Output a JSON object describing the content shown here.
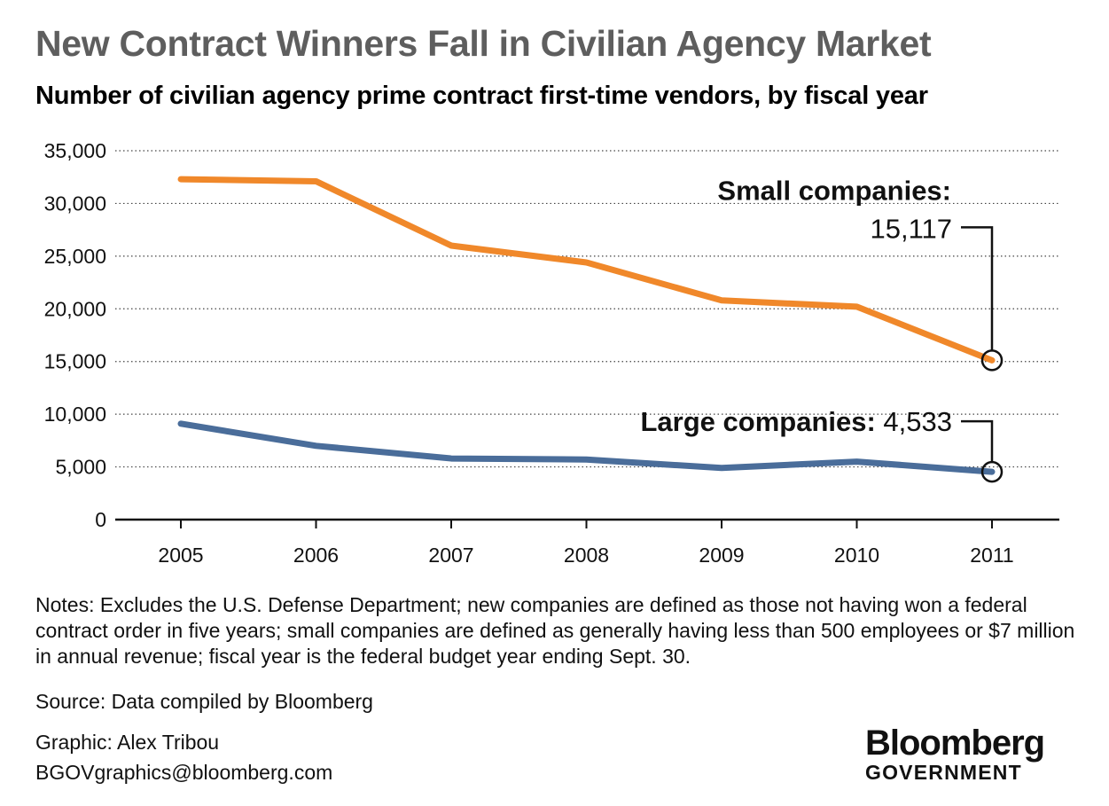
{
  "title": "New Contract Winners Fall in Civilian Agency Market",
  "subtitle": "Number of civilian agency prime contract first-time vendors, by fiscal year",
  "notes": "Notes: Excludes the U.S. Defense Department; new companies are defined as those not having won a federal contract order in five years; small companies are defined as generally having less than 500 employees or $7 million in annual revenue; fiscal year is the federal budget year ending Sept. 30.",
  "source": "Source: Data compiled by Bloomberg",
  "credit": {
    "graphic": "Graphic: Alex Tribou",
    "email": "BGOVgraphics@bloomberg.com"
  },
  "logo": {
    "brand": "Bloomberg",
    "sub": "GOVERNMENT"
  },
  "chart_data": {
    "type": "line",
    "x": [
      "2005",
      "2006",
      "2007",
      "2008",
      "2009",
      "2010",
      "2011"
    ],
    "ylim": [
      0,
      35000
    ],
    "yticks": [
      0,
      5000,
      10000,
      15000,
      20000,
      25000,
      30000,
      35000
    ],
    "ytick_labels": [
      "0",
      "5,000",
      "10,000",
      "15,000",
      "20,000",
      "25,000",
      "30,000",
      "35,000"
    ],
    "grid": "horizontal dotted",
    "series": [
      {
        "name": "Small companies:",
        "color": "#f0882a",
        "values": [
          32300,
          32100,
          26000,
          24400,
          20800,
          20200,
          15117
        ],
        "callout_value": "15,117"
      },
      {
        "name": "Large companies:",
        "color": "#4a6d9a",
        "values": [
          9100,
          7000,
          5800,
          5700,
          4900,
          5500,
          4533
        ],
        "callout_value": "4,533"
      }
    ]
  }
}
